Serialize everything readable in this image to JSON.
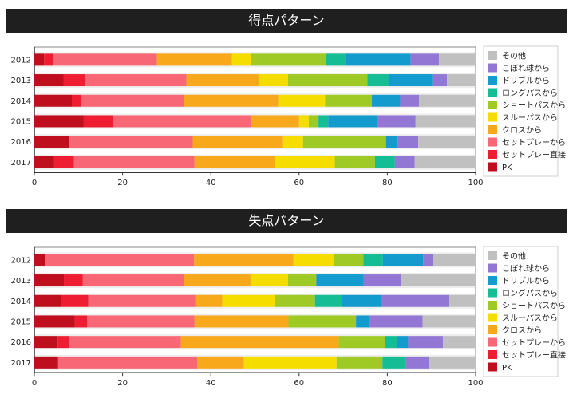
{
  "legend_items": [
    "その他",
    "こぼれ球から",
    "ドリブルから",
    "ロングパスから",
    "ショートパスから",
    "スルーパスから",
    "クロスから",
    "セットプレーから",
    "セットプレー直接",
    "PK"
  ],
  "colors": {
    "PK": "#bf0e1e",
    "セットプレー直接": "#ee1d32",
    "セットプレーから": "#f76776",
    "クロスから": "#f7a81b",
    "スルーパスから": "#f6dd00",
    "ショートパスから": "#9fca25",
    "ロングパスから": "#14bd93",
    "ドリブルから": "#129bcc",
    "こぼれ球から": "#9377d4",
    "その他": "#c0c0c0"
  },
  "chart_data": [
    {
      "type": "bar",
      "orientation": "horizontal",
      "stacked": true,
      "title": "得点パターン",
      "categories": [
        "2012",
        "2013",
        "2014",
        "2015",
        "2016",
        "2017"
      ],
      "xlim": [
        0,
        100
      ],
      "xticks": [
        "0",
        "20",
        "40",
        "60",
        "80",
        "100"
      ],
      "legend_position": "right",
      "series": [
        {
          "name": "PK",
          "values": [
            2.2,
            6.6,
            8.5,
            11.2,
            7.8,
            4.5
          ]
        },
        {
          "name": "セットプレー直接",
          "values": [
            2.2,
            4.9,
            2.1,
            6.6,
            0,
            4.5
          ]
        },
        {
          "name": "セットプレーから",
          "values": [
            23.4,
            23.0,
            23.4,
            31.2,
            28.1,
            27.3
          ]
        },
        {
          "name": "クロスから",
          "values": [
            17.0,
            16.4,
            21.3,
            11.0,
            20.3,
            18.2
          ]
        },
        {
          "name": "スルーパスから",
          "values": [
            4.3,
            6.6,
            10.6,
            2.2,
            4.7,
            13.6
          ]
        },
        {
          "name": "ショートパスから",
          "values": [
            17.0,
            18.0,
            10.6,
            2.2,
            18.8,
            9.1
          ]
        },
        {
          "name": "ロングパスから",
          "values": [
            4.3,
            4.9,
            0,
            2.2,
            0,
            4.5
          ]
        },
        {
          "name": "ドリブルから",
          "values": [
            14.9,
            9.8,
            6.4,
            11.0,
            2.6,
            0
          ]
        },
        {
          "name": "こぼれ球から",
          "values": [
            6.4,
            3.3,
            4.3,
            8.8,
            4.7,
            4.5
          ]
        },
        {
          "name": "その他",
          "values": [
            8.3,
            6.5,
            12.8,
            13.6,
            13.0,
            13.8
          ]
        }
      ]
    },
    {
      "type": "bar",
      "orientation": "horizontal",
      "stacked": true,
      "title": "失点パターン",
      "categories": [
        "2012",
        "2013",
        "2014",
        "2015",
        "2016",
        "2017"
      ],
      "xlim": [
        0,
        100
      ],
      "xticks": [
        "0",
        "20",
        "40",
        "60",
        "80",
        "100"
      ],
      "legend_position": "right",
      "series": [
        {
          "name": "PK",
          "values": [
            2.5,
            6.7,
            6.1,
            9.2,
            5.3,
            5.4
          ]
        },
        {
          "name": "セットプレー直接",
          "values": [
            0,
            4.3,
            6.1,
            2.8,
            2.6,
            0
          ]
        },
        {
          "name": "セットプレーから",
          "values": [
            33.7,
            23.0,
            24.3,
            24.3,
            25.3,
            31.5
          ]
        },
        {
          "name": "クロスから",
          "values": [
            22.5,
            15.0,
            6.1,
            21.3,
            35.8,
            10.6
          ]
        },
        {
          "name": "スルーパスから",
          "values": [
            9.1,
            8.5,
            12.0,
            0,
            0,
            21.0
          ]
        },
        {
          "name": "ショートパスから",
          "values": [
            6.8,
            6.4,
            9.0,
            15.3,
            10.5,
            10.4
          ]
        },
        {
          "name": "ロングパスから",
          "values": [
            4.4,
            0,
            6.1,
            0,
            2.6,
            5.3
          ]
        },
        {
          "name": "ドリブルから",
          "values": [
            9.1,
            10.7,
            9.1,
            3.0,
            2.6,
            0
          ]
        },
        {
          "name": "こぼれ球から",
          "values": [
            2.3,
            8.5,
            15.2,
            12.1,
            7.9,
            5.3
          ]
        },
        {
          "name": "その他",
          "values": [
            9.6,
            16.9,
            6.0,
            12.0,
            7.4,
            10.5
          ]
        }
      ]
    }
  ]
}
